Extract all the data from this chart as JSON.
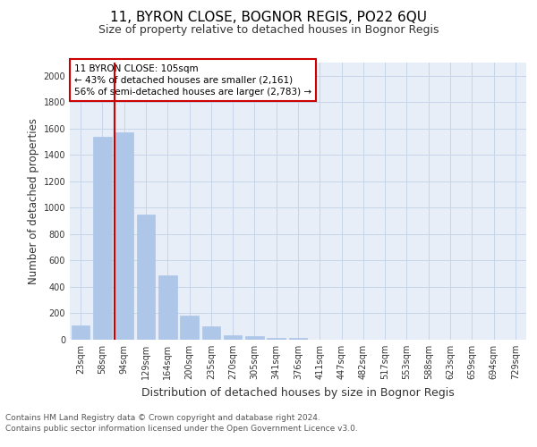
{
  "title": "11, BYRON CLOSE, BOGNOR REGIS, PO22 6QU",
  "subtitle": "Size of property relative to detached houses in Bognor Regis",
  "xlabel": "Distribution of detached houses by size in Bognor Regis",
  "ylabel": "Number of detached properties",
  "footnote1": "Contains HM Land Registry data © Crown copyright and database right 2024.",
  "footnote2": "Contains public sector information licensed under the Open Government Licence v3.0.",
  "bar_labels": [
    "23sqm",
    "58sqm",
    "94sqm",
    "129sqm",
    "164sqm",
    "200sqm",
    "235sqm",
    "270sqm",
    "305sqm",
    "341sqm",
    "376sqm",
    "411sqm",
    "447sqm",
    "482sqm",
    "517sqm",
    "553sqm",
    "588sqm",
    "623sqm",
    "659sqm",
    "694sqm",
    "729sqm"
  ],
  "bar_values": [
    110,
    1540,
    1570,
    950,
    490,
    185,
    100,
    35,
    30,
    15,
    15,
    0,
    0,
    0,
    0,
    0,
    0,
    0,
    0,
    0,
    0
  ],
  "bar_color": "#aec6e8",
  "bar_edgecolor": "#aec6e8",
  "redline_x": 1.55,
  "redline_color": "#cc0000",
  "annotation_box_text": "11 BYRON CLOSE: 105sqm\n← 43% of detached houses are smaller (2,161)\n56% of semi-detached houses are larger (2,783) →",
  "annotation_box_color": "#cc0000",
  "annotation_box_facecolor": "white",
  "ylim": [
    0,
    2100
  ],
  "yticks": [
    0,
    200,
    400,
    600,
    800,
    1000,
    1200,
    1400,
    1600,
    1800,
    2000
  ],
  "grid_color": "#c8d4e8",
  "background_color": "#e8eef8",
  "title_fontsize": 11,
  "subtitle_fontsize": 9,
  "xlabel_fontsize": 9,
  "ylabel_fontsize": 8.5,
  "tick_fontsize": 7,
  "footnote_fontsize": 6.5
}
